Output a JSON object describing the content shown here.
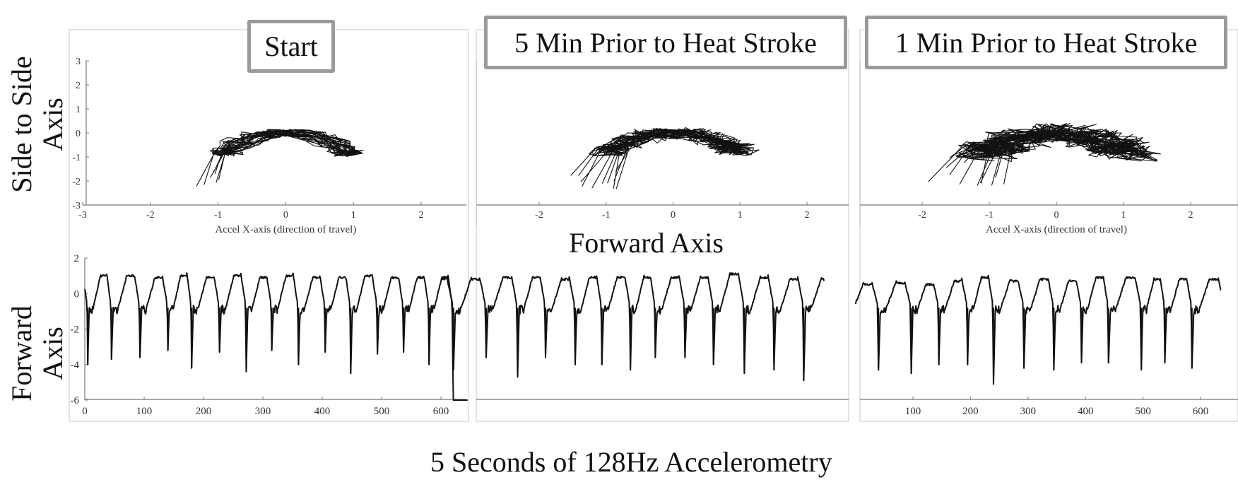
{
  "panel_titles": [
    "Start",
    "5 Min Prior to Heat Stroke",
    "1 Min Prior to Heat Stroke"
  ],
  "row_labels": {
    "top_line1": "Side to Side",
    "top_line2": "Axis",
    "bottom_line1": "Forward",
    "bottom_line2": "Axis"
  },
  "middle_label": "Forward Axis",
  "bottom_caption": "5 Seconds of 128Hz Accelerometry",
  "colors": {
    "trace": "#111111",
    "frame": "#d0d0d0",
    "title_border": "#9a9a9a"
  },
  "chart_data": [
    {
      "type": "line",
      "panel": "Start",
      "row": "top",
      "xlabel": "Accel X-axis (direction of travel)",
      "ylabel": "",
      "xlim": [
        -3,
        2.7
      ],
      "ylim": [
        -3,
        3
      ],
      "xticks": [
        -3,
        -2,
        -1,
        0,
        1,
        2
      ],
      "yticks": [
        -3,
        -2,
        -1,
        0,
        1,
        2,
        3
      ],
      "trajectory": {
        "cycles": 13,
        "x_center": 0,
        "x_amp": 0.95,
        "y_amp": 1.35,
        "lobe_amp": 0.45,
        "jitter": 0.12,
        "tail_min_y": -2.4
      }
    },
    {
      "type": "line",
      "panel": "5 Min Prior to Heat Stroke",
      "row": "top",
      "xlabel": "",
      "ylabel": "",
      "xlim": [
        -3,
        2.7
      ],
      "ylim": [
        -3,
        3
      ],
      "xticks": [
        -2,
        -1,
        0,
        1,
        2
      ],
      "yticks": [],
      "trajectory": {
        "cycles": 14,
        "x_center": 0,
        "x_amp": 0.95,
        "y_amp": 1.2,
        "lobe_amp": 0.5,
        "jitter": 0.22,
        "tail_min_y": -2.5
      }
    },
    {
      "type": "line",
      "panel": "1 Min Prior to Heat Stroke",
      "row": "top",
      "xlabel": "Accel X-axis (direction of travel)",
      "ylabel": "",
      "xlim": [
        -3,
        2.7
      ],
      "ylim": [
        -3,
        3
      ],
      "xticks": [
        -2,
        -1,
        0,
        1,
        2
      ],
      "yticks": [],
      "trajectory": {
        "cycles": 15,
        "x_center": 0,
        "x_amp": 1.05,
        "y_amp": 1.3,
        "lobe_amp": 0.6,
        "jitter": 0.4,
        "tail_min_y": -2.2
      }
    },
    {
      "type": "line",
      "panel": "Start",
      "row": "bottom",
      "xlabel": "",
      "ylabel": "",
      "xlim": [
        0,
        665
      ],
      "ylim": [
        -6,
        2
      ],
      "xticks": [
        0,
        100,
        200,
        300,
        400,
        500,
        600
      ],
      "yticks": [
        -6,
        -4,
        -2,
        0,
        2
      ],
      "signal": {
        "start": 0,
        "end": 645,
        "spike_x": [
          5,
          45,
          93,
          140,
          180,
          227,
          272,
          315,
          360,
          405,
          448,
          493,
          537,
          580
        ],
        "spike_y": [
          -4.0,
          -3.7,
          -3.6,
          -3.2,
          -4.2,
          -3.3,
          -4.4,
          -3.2,
          -4.0,
          -3.3,
          -4.5,
          -3.4,
          -3.3,
          -4.0
        ],
        "peak_y": [
          1.0,
          1.1,
          1.1,
          1.0,
          1.1,
          1.0,
          1.1,
          1.0,
          1.1,
          1.0,
          1.0,
          1.1,
          1.0,
          1.0
        ]
      }
    },
    {
      "type": "line",
      "panel": "5 Min Prior to Heat Stroke",
      "row": "bottom",
      "xlabel": "",
      "ylabel": "",
      "xlim": [
        0,
        665
      ],
      "ylim": [
        -6,
        2
      ],
      "xticks": [],
      "yticks": [],
      "signal": {
        "start": 0,
        "end": 645,
        "spike_x": [
          20,
          75,
          128,
          175,
          225,
          270,
          318,
          360,
          410,
          458,
          510,
          560,
          610
        ],
        "spike_y": [
          -4.3,
          -3.6,
          -4.7,
          -3.6,
          -4.0,
          -4.0,
          -4.3,
          -3.6,
          -3.6,
          -4.0,
          -4.5,
          -4.3,
          -4.9
        ],
        "peak_y": [
          0.9,
          0.9,
          1.0,
          1.0,
          0.9,
          1.0,
          1.0,
          1.0,
          1.0,
          1.0,
          1.2,
          1.0,
          0.9
        ]
      }
    },
    {
      "type": "line",
      "panel": "1 Min Prior to Heat Stroke",
      "row": "bottom",
      "xlabel": "",
      "ylabel": "",
      "xlim": [
        0,
        640
      ],
      "ylim": [
        -6,
        2
      ],
      "xticks": [
        100,
        200,
        300,
        400,
        500,
        600
      ],
      "yticks": [],
      "signal": {
        "start": 0,
        "end": 635,
        "spike_x": [
          40,
          97,
          145,
          195,
          240,
          293,
          345,
          393,
          440,
          497,
          538,
          585
        ],
        "spike_y": [
          -4.3,
          -4.5,
          -4.0,
          -4.0,
          -5.1,
          -4.2,
          -4.3,
          -3.9,
          -3.9,
          -4.3,
          -3.9,
          -4.2
        ],
        "peak_y": [
          0.6,
          0.7,
          0.6,
          0.8,
          1.0,
          0.8,
          0.9,
          0.8,
          1.0,
          1.0,
          0.9,
          0.9
        ]
      }
    }
  ]
}
